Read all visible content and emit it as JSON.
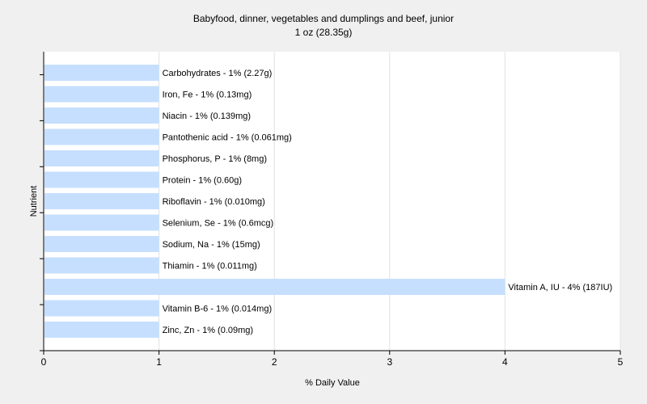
{
  "chart_data": {
    "type": "bar",
    "orientation": "horizontal",
    "title": "Babyfood, dinner, vegetables and dumplings and beef, junior",
    "subtitle": "1 oz (28.35g)",
    "xlabel": "% Daily Value",
    "ylabel": "Nutrient",
    "xlim": [
      0,
      5
    ],
    "xticks": [
      "0",
      "1",
      "2",
      "3",
      "4",
      "5"
    ],
    "grid": "vertical",
    "bar_color": "#c6dfff",
    "categories": [
      "Carbohydrates",
      "Iron, Fe",
      "Niacin",
      "Pantothenic acid",
      "Phosphorus, P",
      "Protein",
      "Riboflavin",
      "Selenium, Se",
      "Sodium, Na",
      "Thiamin",
      "Vitamin A, IU",
      "Vitamin B-6",
      "Zinc, Zn"
    ],
    "values": [
      1,
      1,
      1,
      1,
      1,
      1,
      1,
      1,
      1,
      1,
      4,
      1,
      1
    ],
    "labels": [
      "Carbohydrates - 1% (2.27g)",
      "Iron, Fe - 1% (0.13mg)",
      "Niacin - 1% (0.139mg)",
      "Pantothenic acid - 1% (0.061mg)",
      "Phosphorus, P - 1% (8mg)",
      "Protein - 1% (0.60g)",
      "Riboflavin - 1% (0.010mg)",
      "Selenium, Se - 1% (0.6mcg)",
      "Sodium, Na - 1% (15mg)",
      "Thiamin - 1% (0.011mg)",
      "Vitamin A, IU - 4% (187IU)",
      "Vitamin B-6 - 1% (0.014mg)",
      "Zinc, Zn - 1% (0.09mg)"
    ]
  }
}
